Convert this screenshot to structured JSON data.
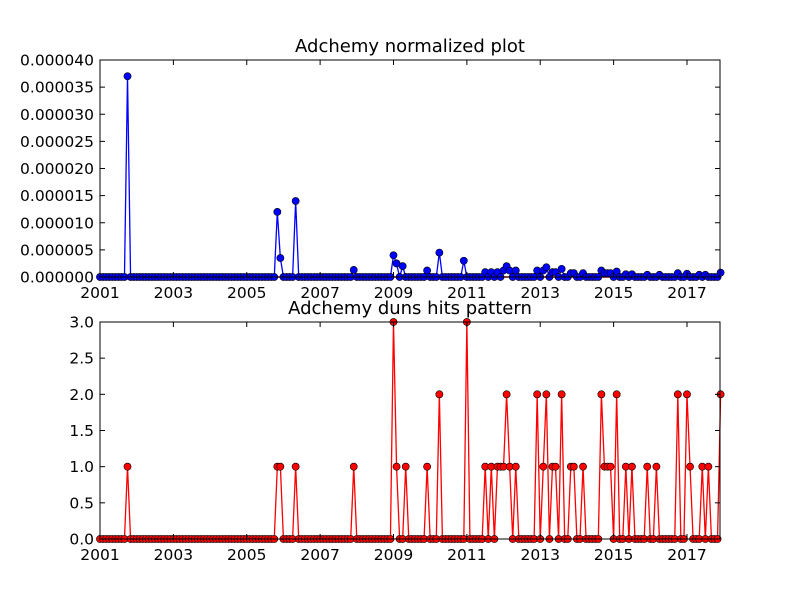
{
  "chart_data": [
    {
      "type": "line",
      "title": "Adchemy normalized plot",
      "xlabel": "",
      "ylabel": "",
      "xlim": [
        2001.0,
        2017.9
      ],
      "ylim": [
        0,
        4e-05
      ],
      "grid": false,
      "line_color": "#0000ff",
      "marker_color": "#0000ff",
      "zero_line_color": "#ff0000",
      "xticks": [
        2001,
        2003,
        2005,
        2007,
        2009,
        2011,
        2013,
        2015,
        2017
      ],
      "xtick_labels": [
        "2001",
        "2003",
        "2005",
        "2007",
        "2009",
        "2011",
        "2013",
        "2015",
        "2017"
      ],
      "yticks": [
        0,
        5e-06,
        1e-05,
        1.5e-05,
        2e-05,
        2.5e-05,
        3e-05,
        3.5e-05,
        4e-05
      ],
      "ytick_labels": [
        "0.000000",
        "0.000005",
        "0.000010",
        "0.000015",
        "0.000020",
        "0.000025",
        "0.000030",
        "0.000035",
        "0.000040"
      ],
      "points": [
        [
          2001.75,
          3.7e-05
        ],
        [
          2005.83,
          1.2e-05
        ],
        [
          2005.92,
          3.5e-06
        ],
        [
          2006.33,
          1.4e-05
        ],
        [
          2007.92,
          1.3e-06
        ],
        [
          2009.0,
          4e-06
        ],
        [
          2009.08,
          2.5e-06
        ],
        [
          2009.25,
          2e-06
        ],
        [
          2009.92,
          1.2e-06
        ],
        [
          2010.25,
          4.5e-06
        ],
        [
          2010.92,
          3e-06
        ],
        [
          2011.5,
          9e-07
        ],
        [
          2011.67,
          9e-07
        ],
        [
          2011.83,
          9e-07
        ],
        [
          2012.0,
          1.2e-06
        ],
        [
          2012.08,
          2e-06
        ],
        [
          2012.17,
          1.2e-06
        ],
        [
          2012.33,
          1.2e-06
        ],
        [
          2012.92,
          1.2e-06
        ],
        [
          2013.08,
          1.2e-06
        ],
        [
          2013.17,
          1.8e-06
        ],
        [
          2013.33,
          9e-07
        ],
        [
          2013.42,
          9e-07
        ],
        [
          2013.58,
          1.5e-06
        ],
        [
          2013.83,
          7e-07
        ],
        [
          2013.92,
          7e-07
        ],
        [
          2014.17,
          7e-07
        ],
        [
          2014.67,
          1.2e-06
        ],
        [
          2014.75,
          7e-07
        ],
        [
          2014.83,
          7e-07
        ],
        [
          2014.92,
          7e-07
        ],
        [
          2015.08,
          1e-06
        ],
        [
          2015.33,
          5e-07
        ],
        [
          2015.5,
          5e-07
        ],
        [
          2015.92,
          4e-07
        ],
        [
          2016.25,
          4e-07
        ],
        [
          2016.75,
          7e-07
        ],
        [
          2017.0,
          6e-07
        ],
        [
          2017.33,
          4e-07
        ],
        [
          2017.5,
          4e-07
        ],
        [
          2017.92,
          8e-07
        ]
      ]
    },
    {
      "type": "line",
      "title": "Adchemy duns hits pattern",
      "xlabel": "",
      "ylabel": "",
      "xlim": [
        2001.0,
        2017.9
      ],
      "ylim": [
        0,
        3.0
      ],
      "grid": false,
      "line_color": "#ff0000",
      "marker_color": "#ff0000",
      "xticks": [
        2001,
        2003,
        2005,
        2007,
        2009,
        2011,
        2013,
        2015,
        2017
      ],
      "xtick_labels": [
        "2001",
        "2003",
        "2005",
        "2007",
        "2009",
        "2011",
        "2013",
        "2015",
        "2017"
      ],
      "yticks": [
        0,
        0.5,
        1.0,
        1.5,
        2.0,
        2.5,
        3.0
      ],
      "ytick_labels": [
        "0.0",
        "0.5",
        "1.0",
        "1.5",
        "2.0",
        "2.5",
        "3.0"
      ],
      "points": [
        [
          2001.75,
          1
        ],
        [
          2005.83,
          1
        ],
        [
          2005.92,
          1
        ],
        [
          2006.33,
          1
        ],
        [
          2007.92,
          1
        ],
        [
          2009.0,
          3
        ],
        [
          2009.08,
          1
        ],
        [
          2009.33,
          1
        ],
        [
          2009.92,
          1
        ],
        [
          2010.25,
          2
        ],
        [
          2011.0,
          3
        ],
        [
          2011.5,
          1
        ],
        [
          2011.67,
          1
        ],
        [
          2011.83,
          1
        ],
        [
          2011.92,
          1
        ],
        [
          2012.0,
          1
        ],
        [
          2012.08,
          2
        ],
        [
          2012.17,
          1
        ],
        [
          2012.33,
          1
        ],
        [
          2012.92,
          2
        ],
        [
          2013.08,
          1
        ],
        [
          2013.17,
          2
        ],
        [
          2013.33,
          1
        ],
        [
          2013.42,
          1
        ],
        [
          2013.58,
          2
        ],
        [
          2013.83,
          1
        ],
        [
          2013.92,
          1
        ],
        [
          2014.17,
          1
        ],
        [
          2014.67,
          2
        ],
        [
          2014.75,
          1
        ],
        [
          2014.83,
          1
        ],
        [
          2014.92,
          1
        ],
        [
          2015.08,
          2
        ],
        [
          2015.33,
          1
        ],
        [
          2015.5,
          1
        ],
        [
          2015.92,
          1
        ],
        [
          2016.17,
          1
        ],
        [
          2016.75,
          2
        ],
        [
          2017.0,
          2
        ],
        [
          2017.08,
          1
        ],
        [
          2017.42,
          1
        ],
        [
          2017.58,
          1
        ],
        [
          2017.92,
          2
        ]
      ]
    }
  ]
}
